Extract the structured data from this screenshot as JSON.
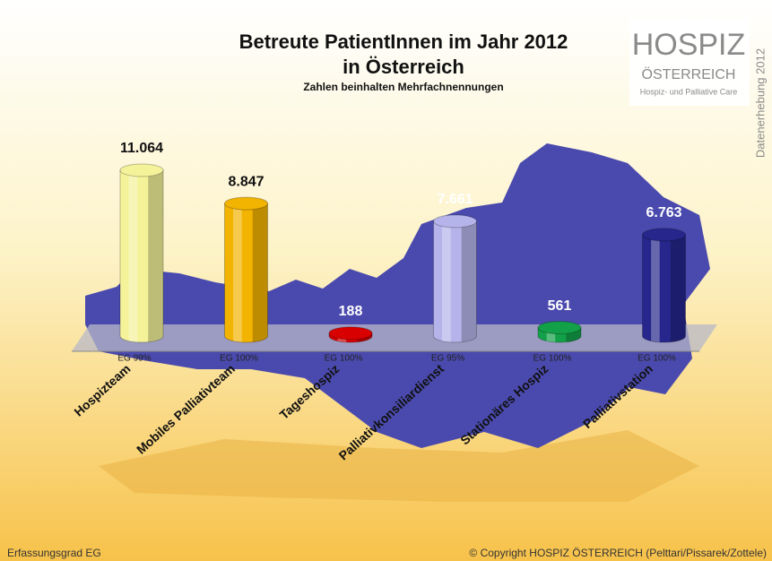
{
  "chart_data": {
    "type": "bar",
    "title": [
      "Betreute PatientInnen im Jahr 2012",
      "in Österreich"
    ],
    "subtitle": "Zahlen beinhalten Mehrfachnennungen",
    "categories": [
      "Hospizteam",
      "Mobiles Palliativteam",
      "Tageshospiz",
      "Palliativkonsiliardienst",
      "Stationäres Hospiz",
      "Palliativstation"
    ],
    "values": [
      11064,
      8847,
      188,
      7661,
      561,
      6763
    ],
    "value_labels": [
      "11.064",
      "8.847",
      "188",
      "7.661",
      "561",
      "6.763"
    ],
    "colors": [
      "#f4f39a",
      "#f2b400",
      "#d80000",
      "#b4b4ea",
      "#12a048",
      "#26268c"
    ],
    "value_label_colors": [
      "#111111",
      "#111111",
      "#ffffff",
      "#ffffff",
      "#ffffff",
      "#ffffff"
    ],
    "coverage_labels": [
      "EG 99%",
      "EG 100%",
      "EG 100%",
      "EG 95%",
      "EG 100%",
      "EG 100%"
    ],
    "logo": {
      "name": "HOSPIZ",
      "country": "ÖSTERREICH",
      "tagline": "Hospiz- und Palliative Care"
    },
    "side_note": "Datenerhebung 2012",
    "footnote": "Erfassungsgrad EG",
    "copyright": "© Copyright HOSPIZ ÖSTERREICH (Pelttari/Pissarek/Zottele)"
  }
}
